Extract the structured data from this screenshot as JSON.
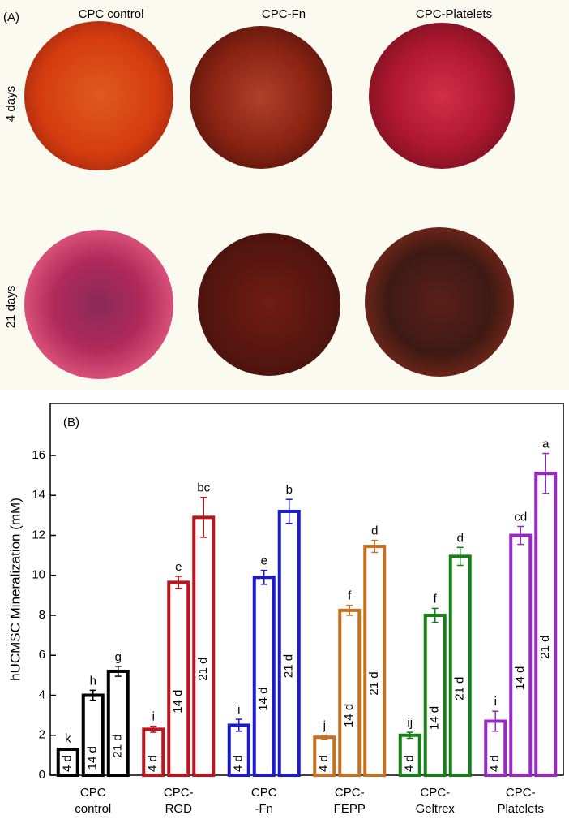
{
  "panel_a": {
    "label": "(A)",
    "columns": [
      "CPC control",
      "CPC-Fn",
      "CPC-Platelets"
    ],
    "rows": [
      "4 days",
      "21 days"
    ]
  },
  "chart_data": {
    "type": "bar",
    "panel_label": "(B)",
    "ylabel": "hUCMSC Mineralization (mM)",
    "categories": [
      [
        "CPC",
        "control"
      ],
      [
        "CPC-",
        "RGD"
      ],
      [
        "CPC",
        "-Fn"
      ],
      [
        "CPC-",
        "FEPP"
      ],
      [
        "CPC-",
        "Geltrex"
      ],
      [
        "CPC-",
        "Platelets"
      ]
    ],
    "colors": [
      "#000000",
      "#c0141c",
      "#1a1ad0",
      "#c87020",
      "#168016",
      "#9a28c8"
    ],
    "series": [
      {
        "name": "4 d",
        "values": [
          1.3,
          2.3,
          2.5,
          1.9,
          2.0,
          2.7
        ],
        "errors": [
          0.05,
          0.15,
          0.3,
          0.1,
          0.15,
          0.5
        ],
        "letters": [
          "k",
          "i",
          "i",
          "j",
          "ij",
          "i"
        ]
      },
      {
        "name": "14 d",
        "values": [
          4.0,
          9.65,
          9.9,
          8.25,
          8.0,
          12.0
        ],
        "errors": [
          0.25,
          0.3,
          0.35,
          0.25,
          0.35,
          0.45
        ],
        "letters": [
          "h",
          "e",
          "e",
          "f",
          "f",
          "cd"
        ]
      },
      {
        "name": "21 d",
        "values": [
          5.2,
          12.9,
          13.2,
          11.45,
          10.95,
          15.1
        ],
        "errors": [
          0.25,
          1.0,
          0.6,
          0.3,
          0.45,
          1.0
        ],
        "letters": [
          "g",
          "bc",
          "b",
          "d",
          "d",
          "a"
        ]
      }
    ],
    "ylim": [
      0,
      18.6
    ],
    "yticks": [
      0,
      2,
      4,
      6,
      8,
      10,
      12,
      14,
      16
    ]
  }
}
